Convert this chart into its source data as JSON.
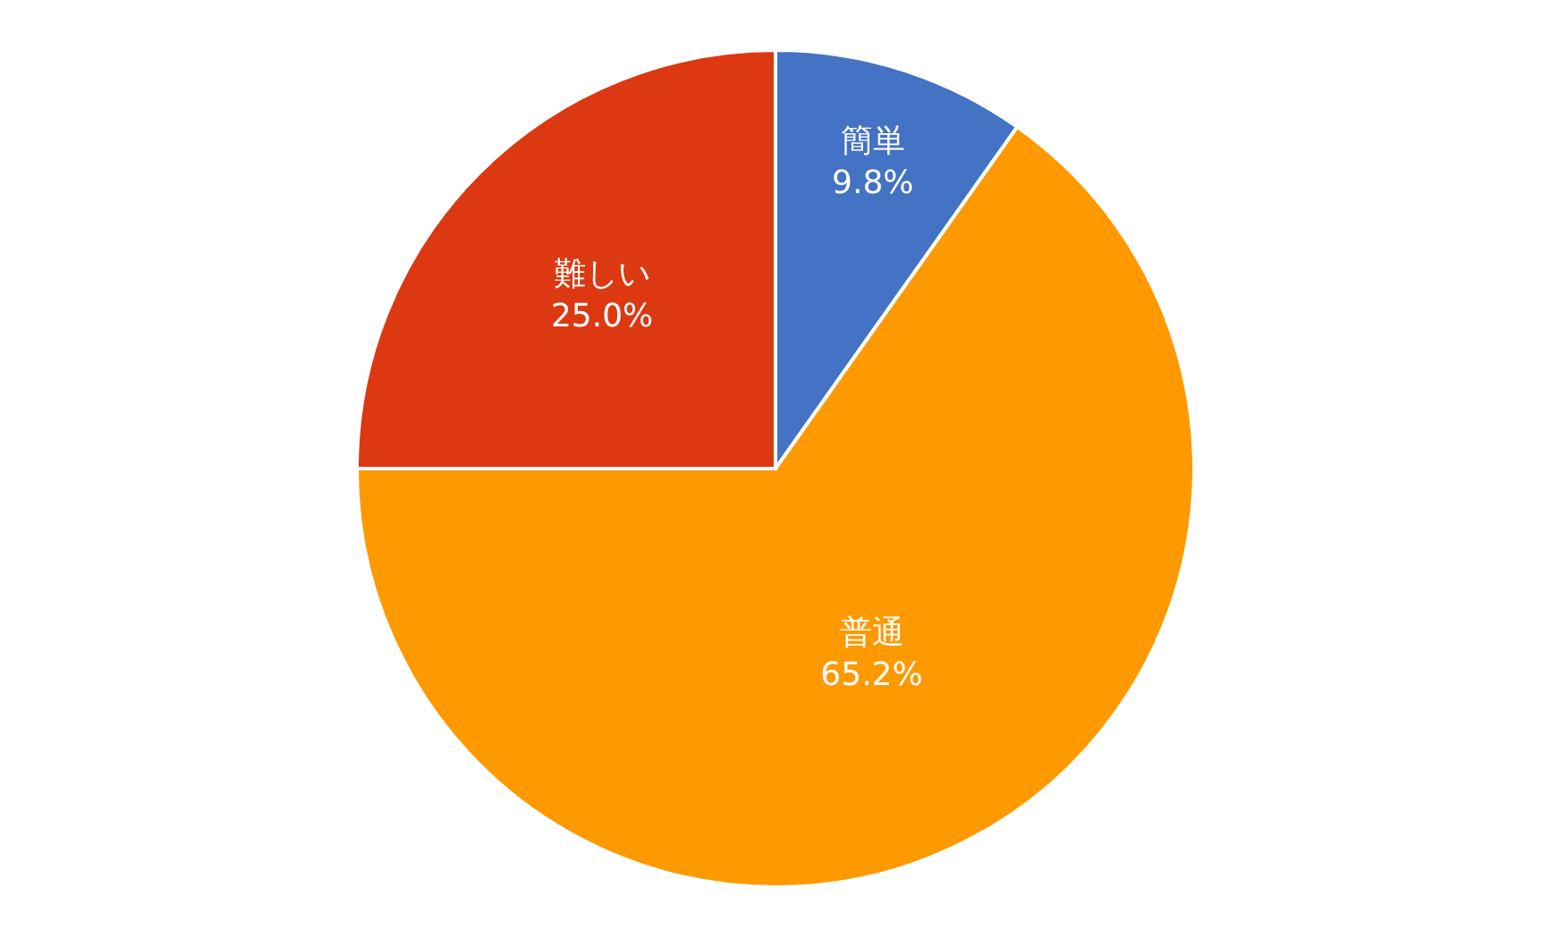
{
  "chart_data": {
    "type": "pie",
    "categories": [
      "簡単",
      "普通",
      "難しい"
    ],
    "values": [
      9.8,
      65.2,
      25.0
    ],
    "value_labels": [
      "9.8%",
      "65.2%",
      "25.0%"
    ],
    "colors": [
      "#4472c4",
      "#ff9900",
      "#dc3912"
    ],
    "legend": false
  }
}
